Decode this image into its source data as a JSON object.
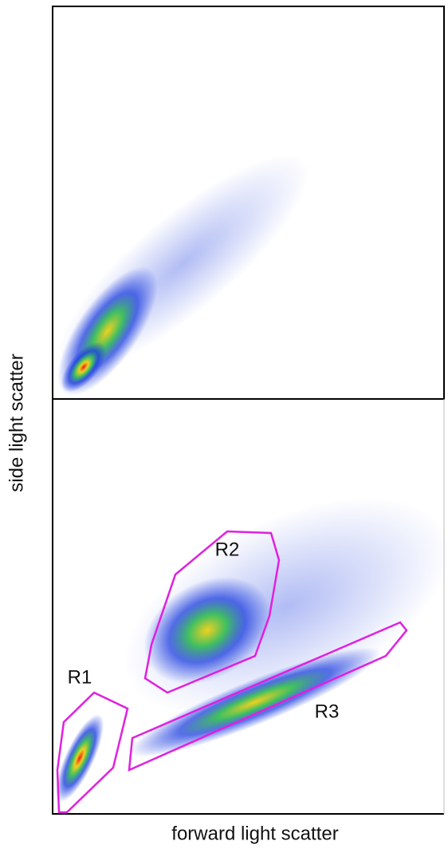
{
  "labels": {
    "y_axis": "side light scatter",
    "x_axis": "forward light scatter"
  },
  "gates": [
    {
      "label": "R1"
    },
    {
      "label": "R2"
    },
    {
      "label": "R3"
    }
  ]
}
